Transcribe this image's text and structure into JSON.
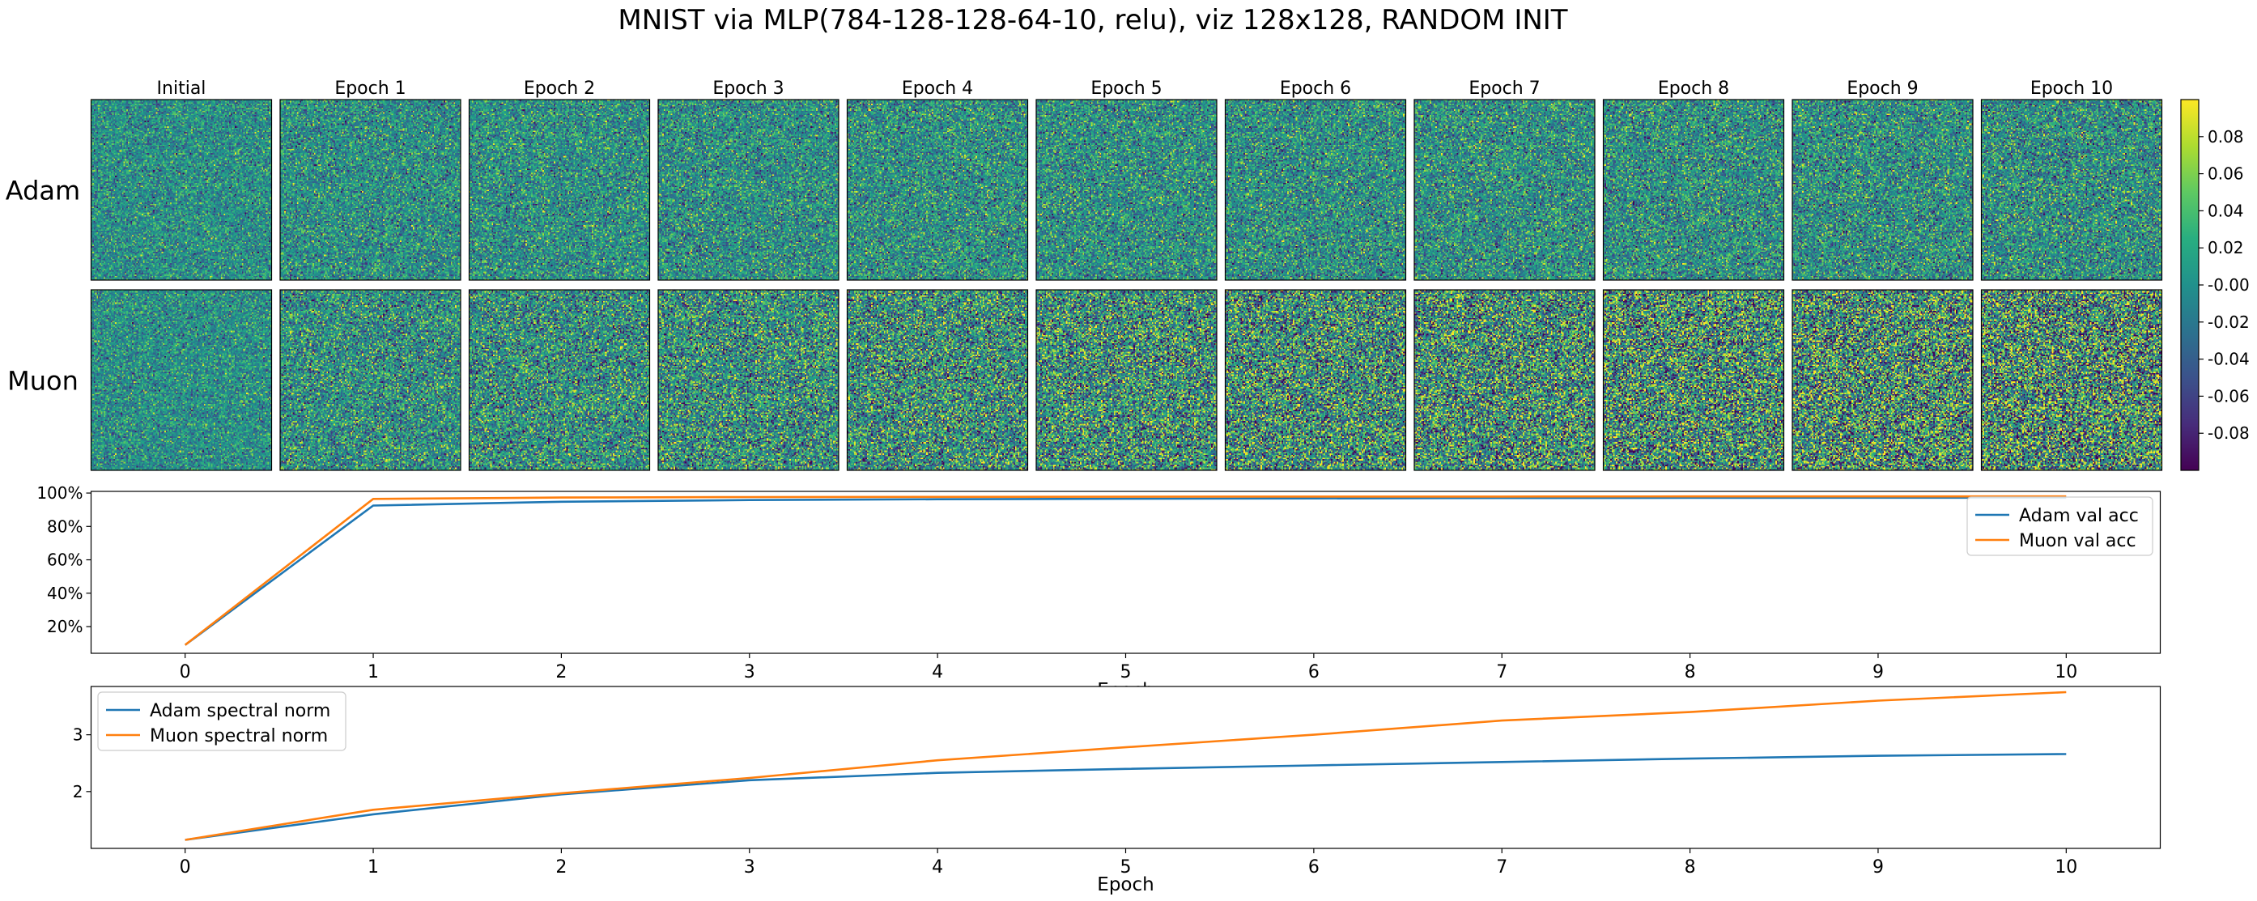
{
  "title": "MNIST via MLP(784-128-128-64-10, relu), viz 128x128, RANDOM INIT",
  "heatmaps": {
    "columns": [
      "Initial",
      "Epoch 1",
      "Epoch 2",
      "Epoch 3",
      "Epoch 4",
      "Epoch 5",
      "Epoch 6",
      "Epoch 7",
      "Epoch 8",
      "Epoch 9",
      "Epoch 10"
    ],
    "rows": [
      "Adam",
      "Muon"
    ],
    "colormap": "viridis",
    "colorbar": {
      "ticks": [
        "0.08",
        "0.06",
        "0.04",
        "0.02",
        "-0.00",
        "-0.02",
        "-0.04",
        "-0.06",
        "-0.08"
      ],
      "tick_values": [
        0.08,
        0.06,
        0.04,
        0.02,
        0.0,
        -0.02,
        -0.04,
        -0.06,
        -0.08
      ],
      "range": [
        -0.1,
        0.1
      ]
    }
  },
  "colors": {
    "adam": "#1f77b4",
    "muon": "#ff7f0e"
  },
  "chart_data": [
    {
      "type": "heatmap",
      "rows": [
        "Adam",
        "Muon"
      ],
      "columns": [
        "Initial",
        "Epoch 1",
        "Epoch 2",
        "Epoch 3",
        "Epoch 4",
        "Epoch 5",
        "Epoch 6",
        "Epoch 7",
        "Epoch 8",
        "Epoch 9",
        "Epoch 10"
      ],
      "resolution": "128x128",
      "value_range": [
        -0.1,
        0.1
      ],
      "approx_spread": {
        "Adam": [
          0.032,
          0.036,
          0.037,
          0.038,
          0.039,
          0.039,
          0.04,
          0.04,
          0.041,
          0.041,
          0.042
        ],
        "Muon": [
          0.032,
          0.044,
          0.048,
          0.052,
          0.056,
          0.06,
          0.063,
          0.066,
          0.07,
          0.073,
          0.076
        ]
      }
    },
    {
      "type": "line",
      "x": [
        0,
        1,
        2,
        3,
        4,
        5,
        6,
        7,
        8,
        9,
        10
      ],
      "xticks": [
        "0",
        "1",
        "2",
        "3",
        "4",
        "5",
        "6",
        "7",
        "8",
        "9",
        "10"
      ],
      "xlabel": "Epoch",
      "ylim": [
        0.04,
        1.01
      ],
      "yticks": [
        "20%",
        "40%",
        "60%",
        "80%",
        "100%"
      ],
      "ytick_values": [
        0.2,
        0.4,
        0.6,
        0.8,
        1.0
      ],
      "legend": "top-right",
      "series": [
        {
          "name": "Adam val acc",
          "values": [
            0.09,
            0.925,
            0.948,
            0.958,
            0.963,
            0.966,
            0.968,
            0.97,
            0.971,
            0.972,
            0.972
          ]
        },
        {
          "name": "Muon val acc",
          "values": [
            0.09,
            0.965,
            0.973,
            0.976,
            0.977,
            0.978,
            0.979,
            0.979,
            0.98,
            0.98,
            0.98
          ]
        }
      ]
    },
    {
      "type": "line",
      "x": [
        0,
        1,
        2,
        3,
        4,
        5,
        6,
        7,
        8,
        9,
        10
      ],
      "xticks": [
        "0",
        "1",
        "2",
        "3",
        "4",
        "5",
        "6",
        "7",
        "8",
        "9",
        "10"
      ],
      "xlabel": "Epoch",
      "ylim": [
        1.0,
        3.85
      ],
      "yticks": [
        "2",
        "3"
      ],
      "ytick_values": [
        2,
        3
      ],
      "legend": "top-left",
      "series": [
        {
          "name": "Adam spectral norm",
          "values": [
            1.15,
            1.6,
            1.95,
            2.2,
            2.33,
            2.4,
            2.46,
            2.52,
            2.58,
            2.63,
            2.66
          ]
        },
        {
          "name": "Muon spectral norm",
          "values": [
            1.15,
            1.68,
            1.97,
            2.24,
            2.55,
            2.78,
            3.0,
            3.25,
            3.4,
            3.6,
            3.75
          ]
        }
      ]
    }
  ]
}
